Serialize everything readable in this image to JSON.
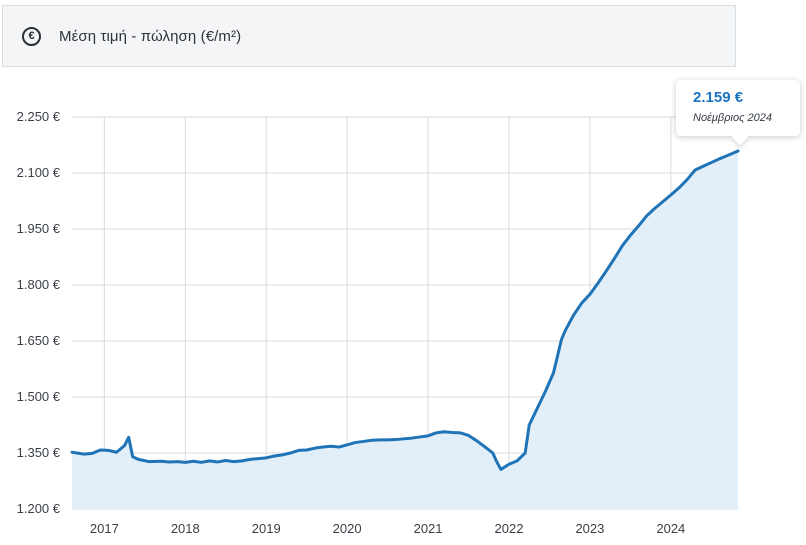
{
  "header": {
    "icon": "euro-circle-icon",
    "title": "Μέση τιμή - πώληση (€/m²)"
  },
  "tooltip": {
    "value": "2.159 €",
    "date": "Νοέμβριος 2024"
  },
  "colors": {
    "line": "#1f73b7",
    "area": "#e3eff8",
    "grid": "#d6d9de",
    "axis_text": "#3a3f47",
    "tooltip_value": "#1a73c2"
  },
  "chart_data": {
    "type": "area",
    "title": "Μέση τιμή - πώληση (€/m²)",
    "xlabel": "",
    "ylabel": "",
    "x_range": [
      2016.6,
      2024.83
    ],
    "ylim": [
      1200,
      2250
    ],
    "y_ticks": [
      1200,
      1350,
      1500,
      1650,
      1800,
      1950,
      2100,
      2250
    ],
    "y_tick_labels": [
      "1.200 €",
      "1.350 €",
      "1.500 €",
      "1.650 €",
      "1.800 €",
      "1.950 €",
      "2.100 €",
      "2.250 €"
    ],
    "x_ticks": [
      2017,
      2018,
      2019,
      2020,
      2021,
      2022,
      2023,
      2024
    ],
    "x_tick_labels": [
      "2017",
      "2018",
      "2019",
      "2020",
      "2021",
      "2022",
      "2023",
      "2024"
    ],
    "grid": true,
    "series": [
      {
        "x": [
          2016.6,
          2016.75,
          2016.85,
          2016.95,
          2017.05,
          2017.15,
          2017.25,
          2017.3,
          2017.35,
          2017.42,
          2017.55,
          2017.7,
          2017.8,
          2017.9,
          2018.0,
          2018.1,
          2018.2,
          2018.3,
          2018.4,
          2018.5,
          2018.6,
          2018.7,
          2018.8,
          2018.9,
          2019.0,
          2019.1,
          2019.2,
          2019.3,
          2019.4,
          2019.5,
          2019.6,
          2019.7,
          2019.8,
          2019.9,
          2020.0,
          2020.1,
          2020.2,
          2020.3,
          2020.4,
          2020.5,
          2020.6,
          2020.7,
          2020.8,
          2020.9,
          2021.0,
          2021.1,
          2021.2,
          2021.3,
          2021.4,
          2021.5,
          2021.6,
          2021.7,
          2021.8,
          2021.85,
          2021.9,
          2022.0,
          2022.1,
          2022.2,
          2022.25,
          2022.35,
          2022.45,
          2022.55,
          2022.65,
          2022.7,
          2022.8,
          2022.9,
          2023.0,
          2023.1,
          2023.2,
          2023.3,
          2023.4,
          2023.5,
          2023.6,
          2023.7,
          2023.8,
          2023.9,
          2024.0,
          2024.1,
          2024.2,
          2024.3,
          2024.4,
          2024.5,
          2024.6,
          2024.7,
          2024.83
        ],
        "values": [
          1352,
          1347,
          1349,
          1358,
          1357,
          1352,
          1370,
          1392,
          1340,
          1333,
          1327,
          1328,
          1326,
          1327,
          1325,
          1328,
          1325,
          1329,
          1326,
          1330,
          1327,
          1329,
          1333,
          1335,
          1337,
          1342,
          1345,
          1350,
          1357,
          1358,
          1363,
          1366,
          1368,
          1366,
          1372,
          1378,
          1381,
          1384,
          1385,
          1385,
          1386,
          1388,
          1390,
          1393,
          1396,
          1404,
          1407,
          1405,
          1404,
          1397,
          1383,
          1367,
          1350,
          1326,
          1306,
          1320,
          1329,
          1350,
          1425,
          1470,
          1515,
          1565,
          1655,
          1680,
          1720,
          1752,
          1775,
          1805,
          1837,
          1870,
          1905,
          1933,
          1958,
          1985,
          2005,
          2023,
          2041,
          2060,
          2082,
          2108,
          2118,
          2128,
          2138,
          2147,
          2159
        ]
      }
    ],
    "highlight": {
      "x": 2024.83,
      "value": 2159,
      "label": "2.159 €",
      "date": "Νοέμβριος 2024"
    }
  }
}
